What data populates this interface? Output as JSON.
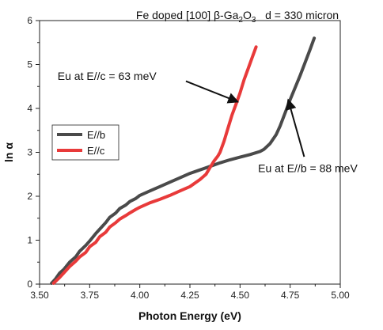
{
  "chart_data": {
    "type": "line",
    "title": "Fe doped [100] β-Ga",
    "title_sub": "2",
    "title_mid": "O",
    "title_sub2": "3",
    "title_tail": "   d = 330 micron",
    "xlabel": "Photon Energy (eV)",
    "ylabel": "ln α",
    "xlim": [
      3.5,
      5.0
    ],
    "ylim": [
      0,
      6
    ],
    "xticks": [
      "3.50",
      "3.75",
      "4.00",
      "4.25",
      "4.50",
      "4.75",
      "5.00"
    ],
    "xtick_values": [
      3.5,
      3.75,
      4.0,
      4.25,
      4.5,
      4.75,
      5.0
    ],
    "yticks": [
      "0",
      "1",
      "2",
      "3",
      "4",
      "5",
      "6"
    ],
    "ytick_values": [
      0,
      1,
      2,
      3,
      4,
      5,
      6
    ],
    "grid": false,
    "legend_position": "middle-left",
    "series": [
      {
        "name": "E//b",
        "color": "#4a4a4a",
        "x": [
          3.56,
          3.58,
          3.6,
          3.62,
          3.65,
          3.68,
          3.7,
          3.73,
          3.75,
          3.78,
          3.8,
          3.83,
          3.85,
          3.88,
          3.9,
          3.93,
          3.95,
          3.98,
          4.0,
          4.05,
          4.1,
          4.15,
          4.2,
          4.25,
          4.3,
          4.35,
          4.4,
          4.45,
          4.5,
          4.55,
          4.6,
          4.62,
          4.65,
          4.68,
          4.7,
          4.75,
          4.8,
          4.85,
          4.87
        ],
        "y": [
          0.02,
          0.12,
          0.25,
          0.33,
          0.5,
          0.62,
          0.75,
          0.88,
          0.98,
          1.15,
          1.25,
          1.4,
          1.52,
          1.62,
          1.72,
          1.8,
          1.88,
          1.95,
          2.02,
          2.12,
          2.22,
          2.32,
          2.42,
          2.52,
          2.6,
          2.68,
          2.76,
          2.83,
          2.89,
          2.95,
          3.02,
          3.07,
          3.2,
          3.4,
          3.6,
          4.2,
          4.75,
          5.35,
          5.6
        ]
      },
      {
        "name": "E//c",
        "color": "#e83a3a",
        "x": [
          3.57,
          3.6,
          3.62,
          3.65,
          3.68,
          3.7,
          3.73,
          3.75,
          3.78,
          3.8,
          3.83,
          3.85,
          3.88,
          3.9,
          3.93,
          3.95,
          3.98,
          4.0,
          4.05,
          4.1,
          4.15,
          4.2,
          4.25,
          4.3,
          4.33,
          4.35,
          4.37,
          4.39,
          4.4,
          4.42,
          4.44,
          4.46,
          4.48,
          4.5,
          4.52,
          4.54,
          4.56,
          4.58
        ],
        "y": [
          0.02,
          0.15,
          0.25,
          0.4,
          0.52,
          0.62,
          0.72,
          0.85,
          0.95,
          1.08,
          1.18,
          1.3,
          1.4,
          1.48,
          1.56,
          1.62,
          1.7,
          1.75,
          1.85,
          1.93,
          2.02,
          2.12,
          2.22,
          2.38,
          2.5,
          2.65,
          2.8,
          2.92,
          3.0,
          3.25,
          3.55,
          3.85,
          4.1,
          4.35,
          4.65,
          4.9,
          5.15,
          5.4
        ]
      }
    ],
    "annotations": [
      {
        "text": "Eu at E//c = 63 meV",
        "text_x": 3.59,
        "text_y": 4.65,
        "arrow_from": [
          4.23,
          4.62
        ],
        "arrow_to": [
          4.49,
          4.15
        ]
      },
      {
        "text": "Eu at E//b = 88 meV",
        "text_x": 4.59,
        "text_y": 2.55,
        "arrow_from": [
          4.82,
          2.9
        ],
        "arrow_to": [
          4.74,
          4.2
        ]
      }
    ]
  }
}
